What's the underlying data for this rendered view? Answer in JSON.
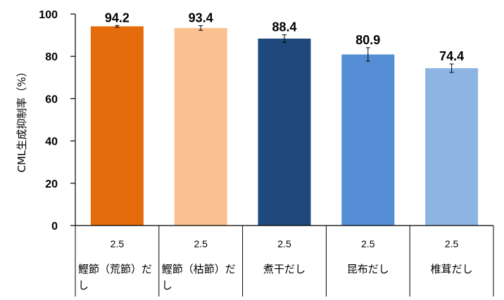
{
  "chart_data": {
    "type": "bar",
    "ylabel": "CML生成抑制率（%）",
    "ylim": [
      0,
      100
    ],
    "yticks": [
      0,
      20,
      40,
      60,
      80,
      100
    ],
    "grid": false,
    "legend": "none",
    "bars": [
      {
        "concentration": "2.5",
        "category_lines": [
          "鰹節（荒節）だ",
          "し"
        ],
        "value": 94.2,
        "value_label": "94.2",
        "error": 0.4,
        "color": "#E46C0A"
      },
      {
        "concentration": "2.5",
        "category_lines": [
          "鰹節（枯節）だ",
          "し"
        ],
        "value": 93.4,
        "value_label": "93.4",
        "error": 1.1,
        "color": "#FAC090"
      },
      {
        "concentration": "2.5",
        "category_lines": [
          "煮干だし"
        ],
        "value": 88.4,
        "value_label": "88.4",
        "error": 1.8,
        "color": "#1F497D"
      },
      {
        "concentration": "2.5",
        "category_lines": [
          "昆布だし"
        ],
        "value": 80.9,
        "value_label": "80.9",
        "error": 3.2,
        "color": "#558ED5"
      },
      {
        "concentration": "2.5",
        "category_lines": [
          "椎茸だし"
        ],
        "value": 74.4,
        "value_label": "74.4",
        "error": 2.0,
        "color": "#8EB4E3"
      }
    ]
  }
}
